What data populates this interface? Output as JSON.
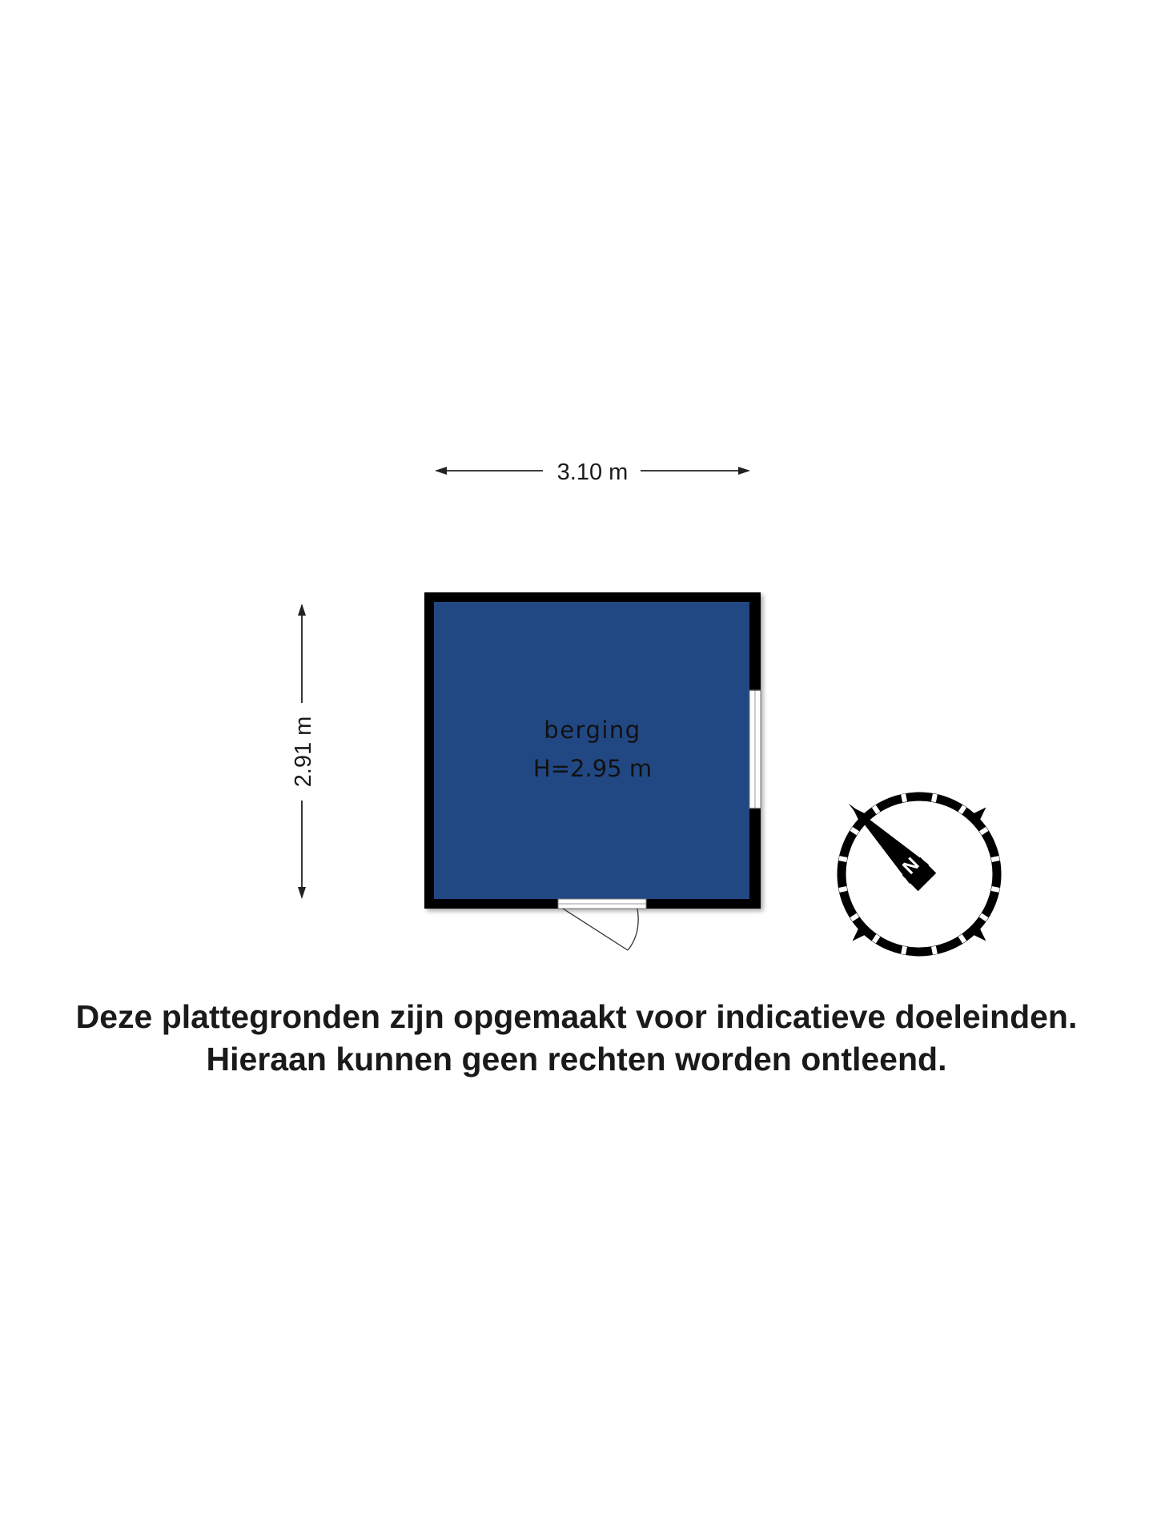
{
  "dimensions": {
    "width_label": "3.10 m",
    "height_label": "2.91 m"
  },
  "room": {
    "name": "berging",
    "ceiling_height": "H=2.95 m",
    "fill_color": "#224884",
    "wall_color": "#000000"
  },
  "compass": {
    "north_label": "N"
  },
  "disclaimer": {
    "line1": "Deze plattegronden zijn opgemaakt voor indicatieve doeleinden.",
    "line2": "Hieraan kunnen geen rechten worden ontleend."
  }
}
